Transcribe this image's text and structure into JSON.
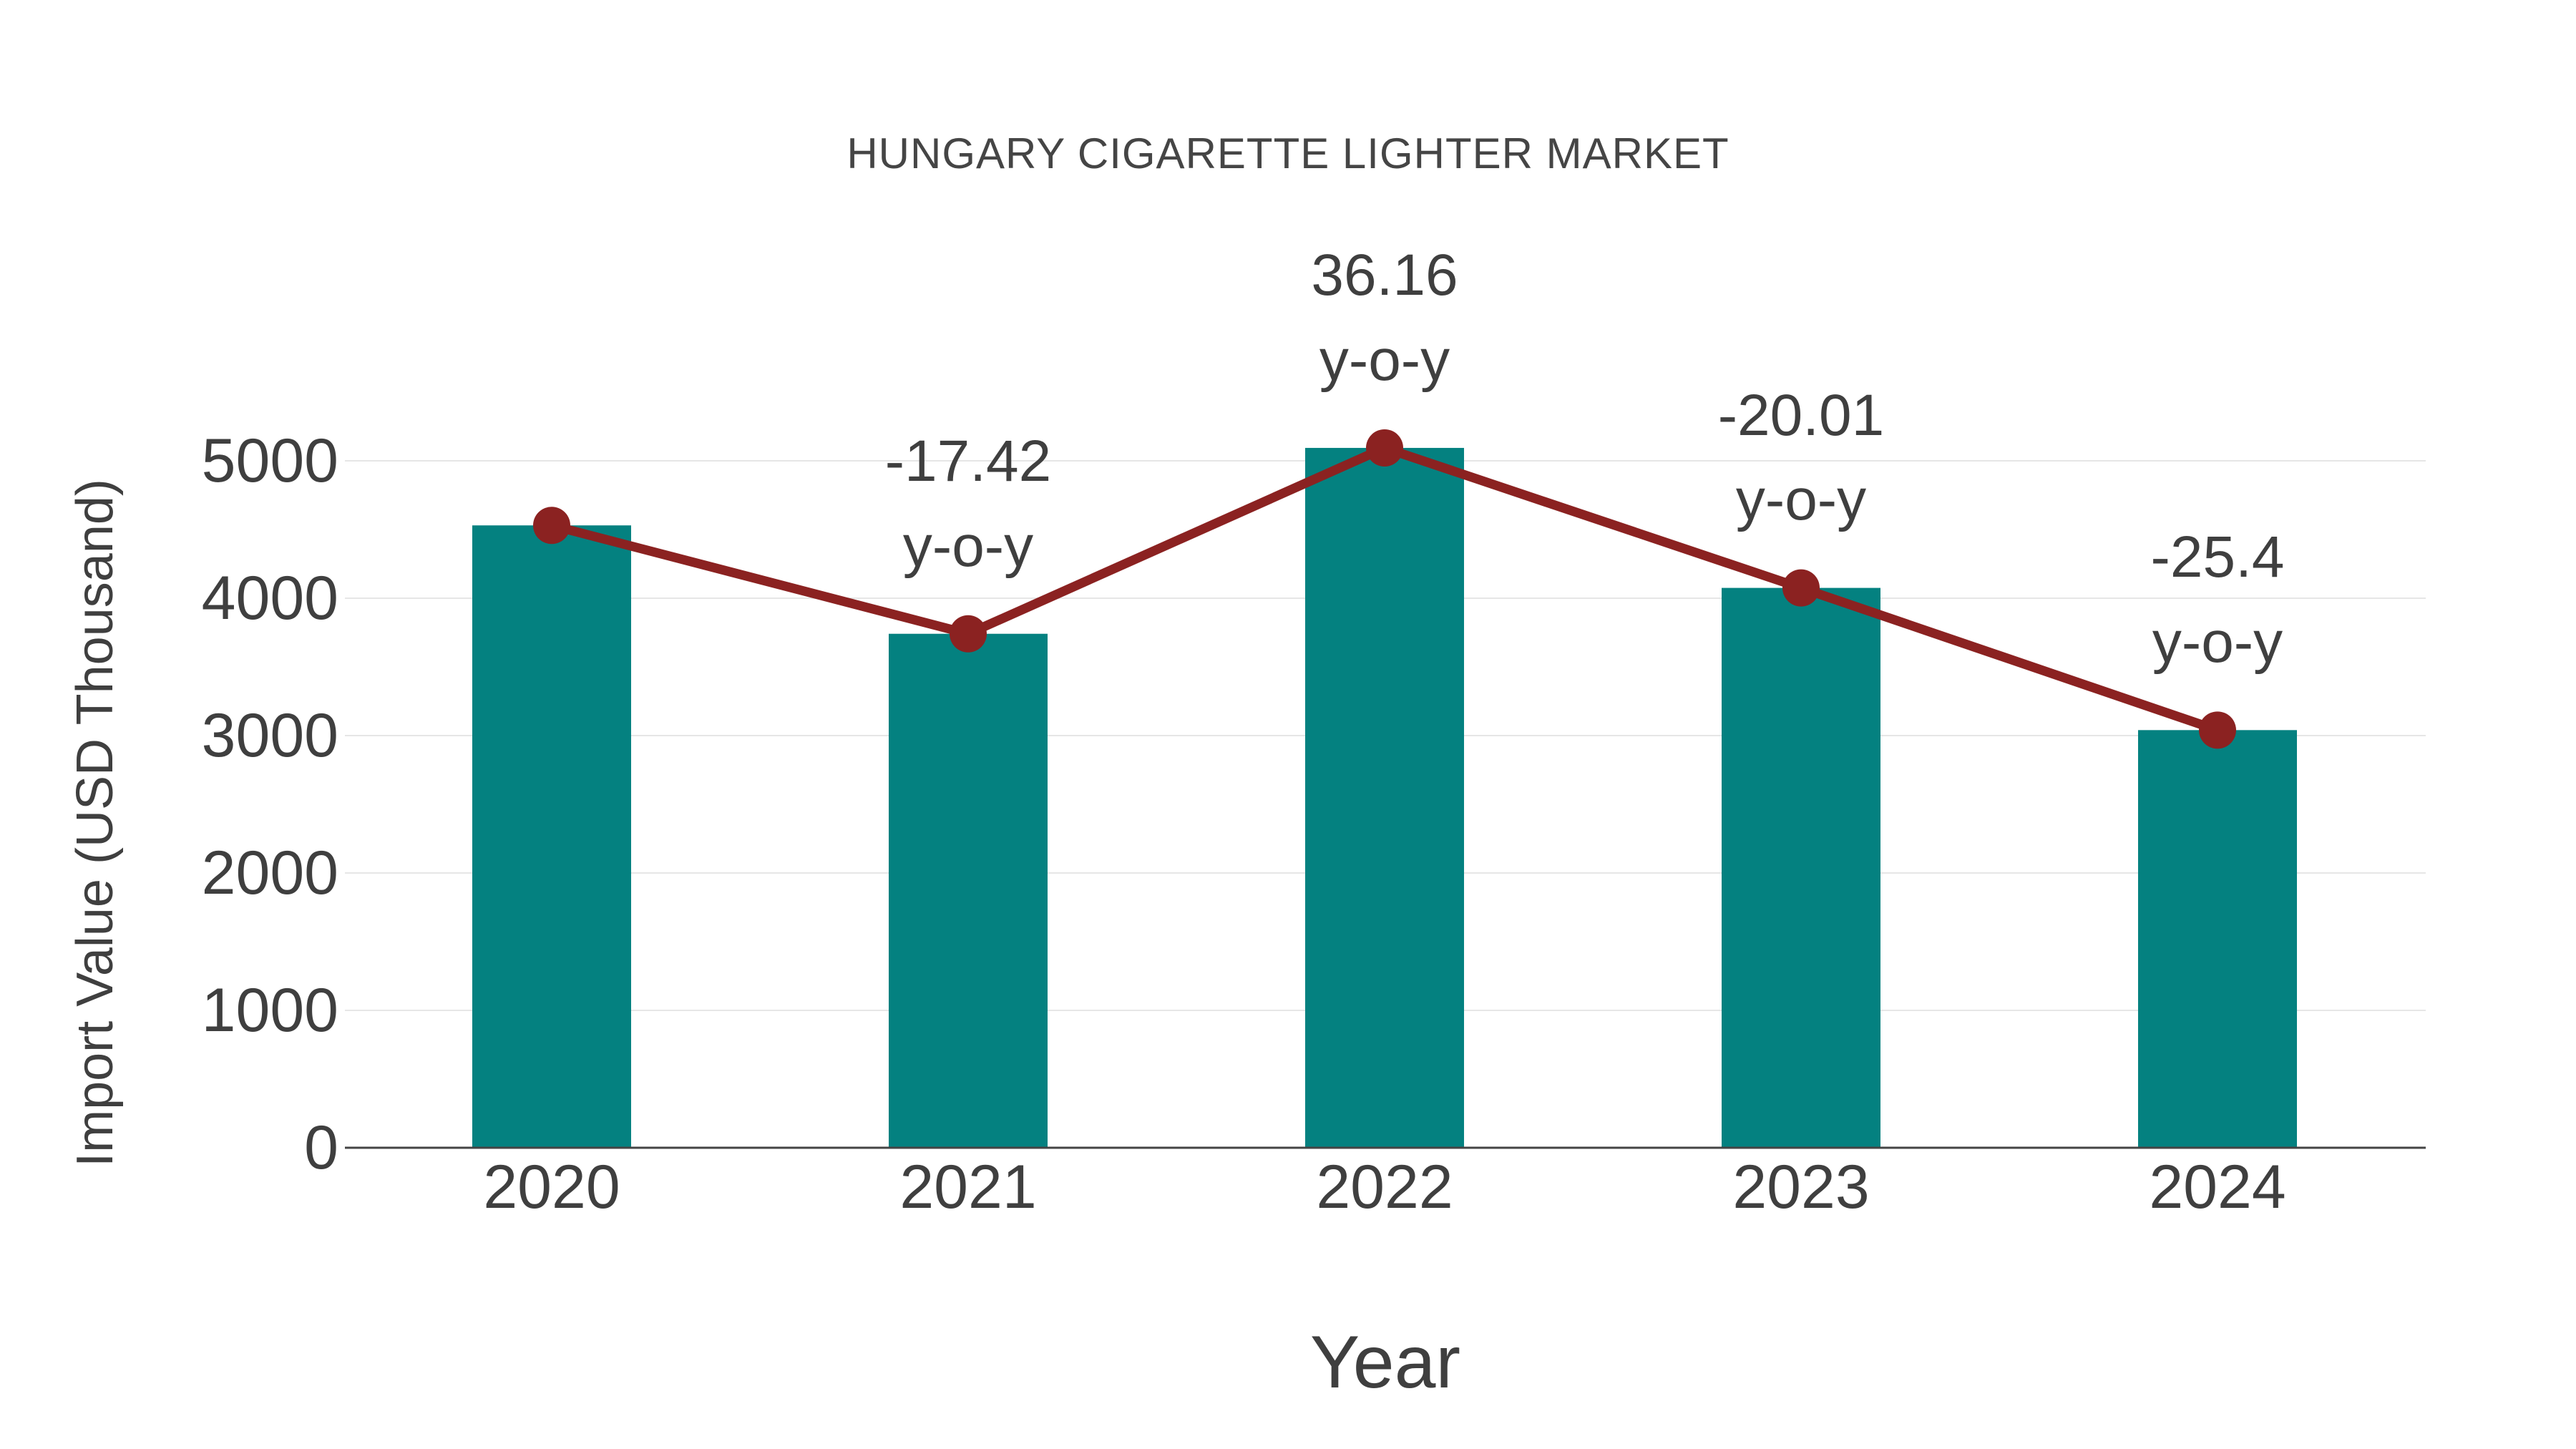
{
  "title": "HUNGARY CIGARETTE LIGHTER MARKET",
  "colors": {
    "bar": "#048180",
    "line": "#8B2221",
    "marker": "#8B2221",
    "text": "#3f3f3f",
    "title_text": "#454545",
    "grid": "#e6e6e6",
    "axis": "#444444",
    "background": "#ffffff"
  },
  "chart_data": {
    "type": "bar",
    "title": "HUNGARY CIGARETTE LIGHTER MARKET",
    "xlabel": "Year",
    "ylabel": "Import Value (USD Thousand)",
    "categories": [
      "2020",
      "2021",
      "2022",
      "2023",
      "2024"
    ],
    "series": [
      {
        "name": "Import Value (USD Thousand)",
        "type": "bar",
        "values": [
          4530,
          3741,
          5094,
          4075,
          3040
        ]
      },
      {
        "name": "y-o-y trend line",
        "type": "line",
        "values": [
          4530,
          3741,
          5094,
          4075,
          3040
        ]
      }
    ],
    "annotations": [
      {
        "category": "2021",
        "value": "-17.42",
        "suffix": "y-o-y"
      },
      {
        "category": "2022",
        "value": "36.16",
        "suffix": "y-o-y"
      },
      {
        "category": "2023",
        "value": "-20.01",
        "suffix": "y-o-y"
      },
      {
        "category": "2024",
        "value": "-25.4",
        "suffix": "y-o-y"
      }
    ],
    "yticks": [
      0,
      1000,
      2000,
      3000,
      4000,
      5000
    ],
    "ylim": [
      0,
      5330
    ],
    "grid": true,
    "legend": false
  }
}
